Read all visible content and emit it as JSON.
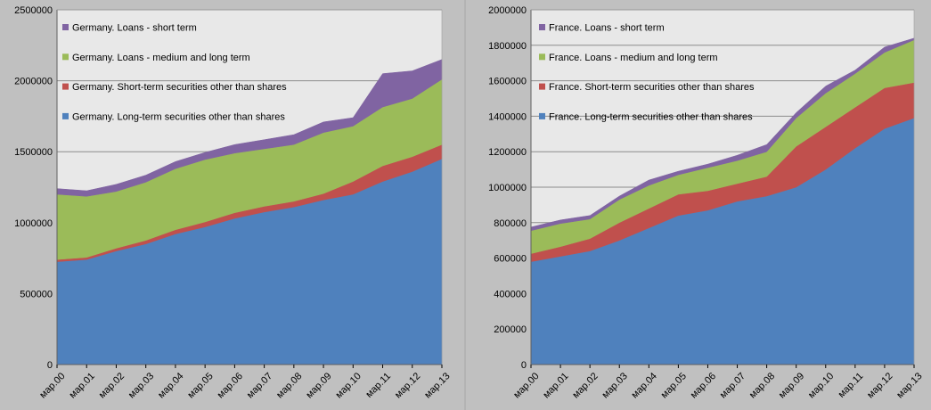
{
  "chart_data": [
    {
      "type": "area",
      "stacked": true,
      "title": "",
      "xlabel": "",
      "ylabel": "",
      "ylim": [
        0,
        2500000
      ],
      "yticks": [
        "0",
        "500000",
        "1000000",
        "1500000",
        "2000000",
        "2500000"
      ],
      "categories": [
        "мар.00",
        "мар.01",
        "мар.02",
        "мар.03",
        "мар.04",
        "мар.05",
        "мар.06",
        "мар.07",
        "мар.08",
        "мар.09",
        "мар.10",
        "мар.11",
        "мар.12",
        "мар.13"
      ],
      "grid": "horizontal",
      "legend_position": "top-left-inside",
      "series": [
        {
          "name": "Germany. Long-term securities other than shares",
          "color": "#4f81bd",
          "values": [
            725000,
            740000,
            800000,
            850000,
            920000,
            970000,
            1030000,
            1075000,
            1110000,
            1160000,
            1200000,
            1290000,
            1360000,
            1450000
          ]
        },
        {
          "name": "Germany. Short-term securities other than shares",
          "color": "#c0504d",
          "values": [
            15000,
            15000,
            20000,
            25000,
            30000,
            35000,
            40000,
            40000,
            40000,
            45000,
            90000,
            110000,
            105000,
            100000
          ]
        },
        {
          "name": "Germany. Loans - medium and long term",
          "color": "#9bbb59",
          "values": [
            460000,
            430000,
            400000,
            410000,
            430000,
            440000,
            420000,
            405000,
            400000,
            430000,
            390000,
            415000,
            410000,
            460000
          ]
        },
        {
          "name": "Germany. Loans - short term",
          "color": "#8064a2",
          "values": [
            40000,
            40000,
            50000,
            50000,
            50000,
            50000,
            60000,
            65000,
            70000,
            75000,
            60000,
            235000,
            195000,
            140000
          ]
        }
      ]
    },
    {
      "type": "area",
      "stacked": true,
      "title": "",
      "xlabel": "",
      "ylabel": "",
      "ylim": [
        0,
        2000000
      ],
      "yticks": [
        "0",
        "200000",
        "400000",
        "600000",
        "800000",
        "1000000",
        "1200000",
        "1400000",
        "1600000",
        "1800000",
        "2000000"
      ],
      "categories": [
        "мар.00",
        "мар.01",
        "мар.02",
        "мар.03",
        "мар.04",
        "мар.05",
        "мар.06",
        "мар.07",
        "мар.08",
        "мар.09",
        "мар.10",
        "мар.11",
        "мар.12",
        "мар.13"
      ],
      "grid": "horizontal",
      "legend_position": "top-left-inside",
      "series": [
        {
          "name": "France. Long-term securities other than shares",
          "color": "#4f81bd",
          "values": [
            580000,
            610000,
            640000,
            700000,
            770000,
            840000,
            870000,
            920000,
            950000,
            1000000,
            1100000,
            1220000,
            1330000,
            1390000
          ]
        },
        {
          "name": "France. Short-term securities other than shares",
          "color": "#c0504d",
          "values": [
            45000,
            55000,
            70000,
            100000,
            110000,
            120000,
            110000,
            100000,
            110000,
            230000,
            240000,
            230000,
            230000,
            200000
          ]
        },
        {
          "name": "France. Loans - medium and long term",
          "color": "#9bbb59",
          "values": [
            130000,
            130000,
            110000,
            130000,
            130000,
            110000,
            130000,
            130000,
            140000,
            160000,
            190000,
            190000,
            200000,
            240000
          ]
        },
        {
          "name": "France. Loans - short term",
          "color": "#8064a2",
          "values": [
            20000,
            20000,
            20000,
            20000,
            30000,
            20000,
            20000,
            30000,
            40000,
            30000,
            40000,
            20000,
            30000,
            10000
          ]
        }
      ]
    }
  ]
}
